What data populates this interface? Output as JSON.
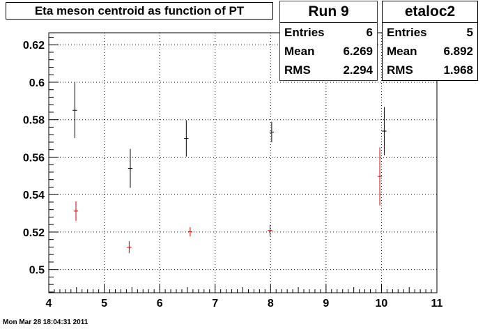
{
  "chart_data": {
    "type": "scatter",
    "title": "Eta meson centroid as function of PT",
    "xlabel": "",
    "ylabel": "",
    "xlim": [
      4,
      11
    ],
    "ylim": [
      0.4876,
      0.6264
    ],
    "x_ticks": [
      4,
      5,
      6,
      7,
      8,
      9,
      10,
      11
    ],
    "y_ticks": [
      0.5,
      0.52,
      0.54,
      0.56,
      0.58,
      0.6,
      0.62
    ],
    "y_tick_labels": [
      "0.5",
      "0.52",
      "0.54",
      "0.56",
      "0.58",
      "0.6",
      "0.62"
    ],
    "grid": true,
    "series": [
      {
        "name": "etaloc2",
        "color": "#000000",
        "points": [
          {
            "x": 4.47,
            "y": 0.585,
            "yerr": 0.0148,
            "xerr": 0.04
          },
          {
            "x": 5.47,
            "y": 0.554,
            "yerr": 0.0104,
            "xerr": 0.04
          },
          {
            "x": 6.48,
            "y": 0.57,
            "yerr": 0.0097,
            "xerr": 0.04
          },
          {
            "x": 8.02,
            "y": 0.5734,
            "yerr": 0.0055,
            "xerr": 0.04
          },
          {
            "x": 10.05,
            "y": 0.5739,
            "yerr": 0.0129,
            "xerr": 0.04
          }
        ]
      },
      {
        "name": "Run 9",
        "color": "#cc0000",
        "points": [
          {
            "x": 4.49,
            "y": 0.5312,
            "yerr": 0.0052,
            "xerr": 0.04
          },
          {
            "x": 5.45,
            "y": 0.5119,
            "yerr": 0.0032,
            "xerr": 0.04
          },
          {
            "x": 6.55,
            "y": 0.5202,
            "yerr": 0.0025,
            "xerr": 0.04
          },
          {
            "x": 7.99,
            "y": 0.5208,
            "yerr": 0.0031,
            "xerr": 0.04
          },
          {
            "x": 9.97,
            "y": 0.5497,
            "yerr": 0.0155,
            "xerr": 0.04
          }
        ]
      }
    ]
  },
  "stats_run9": {
    "title": "Run 9",
    "entries_label": "Entries",
    "entries": "6",
    "mean_label": "Mean",
    "mean": "6.269",
    "rms_label": "RMS",
    "rms": "2.294"
  },
  "stats_etaloc2": {
    "title": "etaloc2",
    "entries_label": "Entries",
    "entries": "5",
    "mean_label": "Mean",
    "mean": "6.892",
    "rms_label": "RMS",
    "rms": "1.968"
  },
  "timestamp": "Mon Mar 28 18:04:31 2011"
}
